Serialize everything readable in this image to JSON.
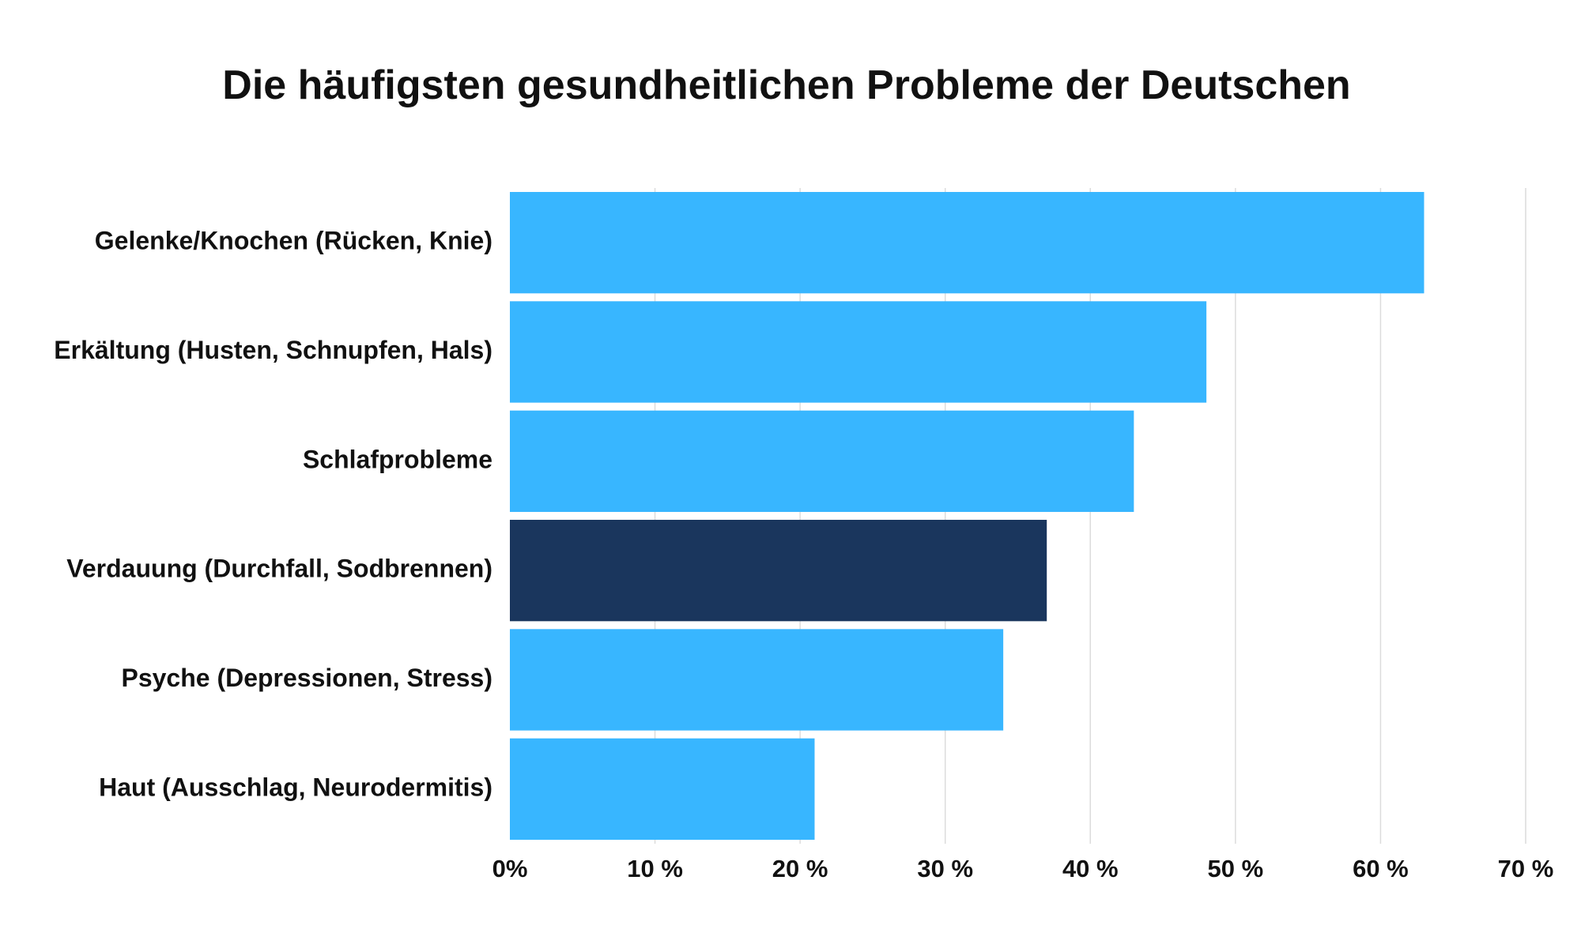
{
  "chart_data": {
    "type": "bar",
    "orientation": "horizontal",
    "title": "Die häufigsten gesundheitlichen Probleme der Deutschen",
    "xlabel": "",
    "ylabel": "",
    "categories": [
      "Gelenke/Knochen (Rücken, Knie)",
      "Erkältung (Husten, Schnupfen, Hals)",
      "Schlafprobleme",
      "Verdauung (Durchfall, Sodbrennen)",
      "Psyche (Depressionen, Stress)",
      "Haut (Ausschlag, Neurodermitis)"
    ],
    "values": [
      63,
      48,
      43,
      37,
      34,
      21
    ],
    "bar_colors": [
      "#38b6ff",
      "#38b6ff",
      "#38b6ff",
      "#1a365d",
      "#38b6ff",
      "#38b6ff"
    ],
    "xlim": [
      0,
      70
    ],
    "ticks": [
      0,
      10,
      20,
      30,
      40,
      50,
      60,
      70
    ],
    "tick_labels": [
      "0%",
      "10 %",
      "20 %",
      "30 %",
      "40 %",
      "50 %",
      "60 %",
      "70 %"
    ],
    "grid": true,
    "legend": "none"
  }
}
